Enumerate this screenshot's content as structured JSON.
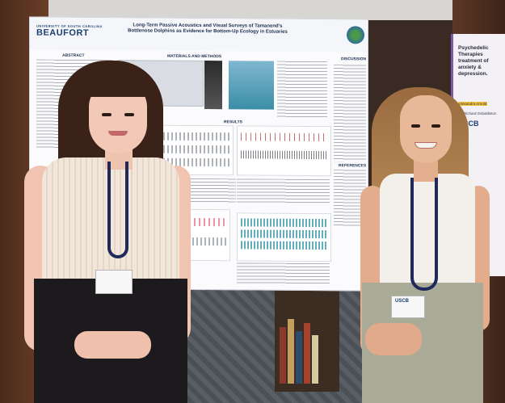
{
  "poster": {
    "logo_top": "UNIVERSITY OF SOUTH CAROLINA",
    "logo": "BEAUFORT",
    "title": "Long-Term Passive Acoustics and Visual Surveys of Tamanend's Bottlenose Dolphins as Evidence for Bottom-Up Ecology in Estuaries",
    "sections": {
      "abstract": "ABSTRACT",
      "methods": "MATERIALS AND METHODS",
      "results": "RESULTS",
      "discussion": "DISCUSSION",
      "references": "REFERENCES"
    }
  },
  "side_poster": {
    "title_1": "Psychedelic Therapies",
    "title_2": "treatment of anxiety",
    "title_3": "& depression.",
    "highlight": "Alexandra Arnold",
    "advisor": "Dr. Richard Osbaldiston",
    "logo": "USCB"
  },
  "badges": {
    "right": "USCB"
  }
}
